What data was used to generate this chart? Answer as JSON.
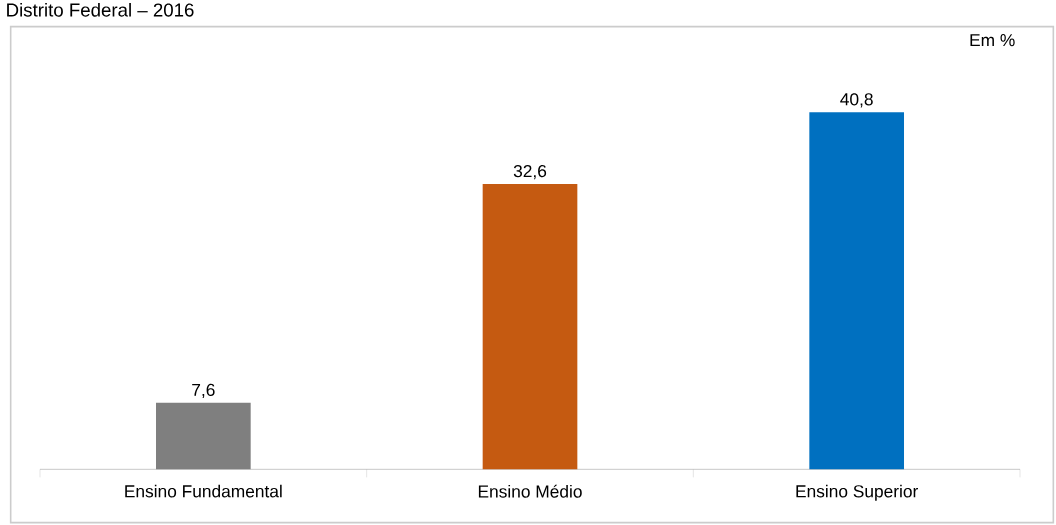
{
  "chart_data": {
    "type": "bar",
    "title": "Distrito Federal – 2016",
    "categories": [
      "Ensino Fundamental",
      "Ensino Médio",
      "Ensino Superior"
    ],
    "values": [
      7.6,
      32.6,
      40.8
    ],
    "value_labels": [
      "7,6",
      "32,6",
      "40,8"
    ],
    "colors": [
      "#7f7f7f",
      "#c55a11",
      "#0070c0"
    ],
    "annotations": [
      "Em %"
    ]
  }
}
